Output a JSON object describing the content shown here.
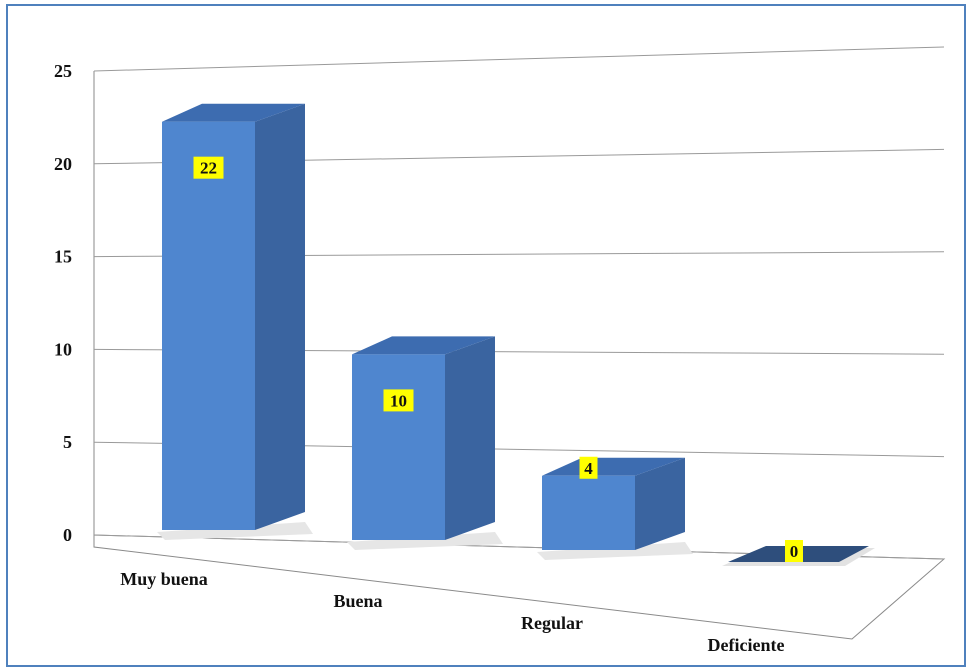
{
  "chart_data": {
    "type": "bar",
    "categories": [
      "Muy buena",
      "Buena",
      "Regular",
      "Deficiente"
    ],
    "values": [
      22,
      10,
      4,
      0
    ],
    "title": "",
    "xlabel": "",
    "ylabel": "",
    "ylim": [
      0,
      25
    ],
    "yticks": [
      0,
      5,
      10,
      15,
      20,
      25
    ],
    "data_labels": true,
    "grid": true,
    "legend": false,
    "style": "3d-column"
  },
  "colors": {
    "bar_front": "#4f86cf",
    "bar_side": "#3a64a0",
    "bar_top": "#3d6cb0",
    "zero_bar": "#2e4e7c",
    "label_bg": "#ffff00",
    "gridline": "#9a9a9a",
    "frame": "#4f81bd"
  }
}
